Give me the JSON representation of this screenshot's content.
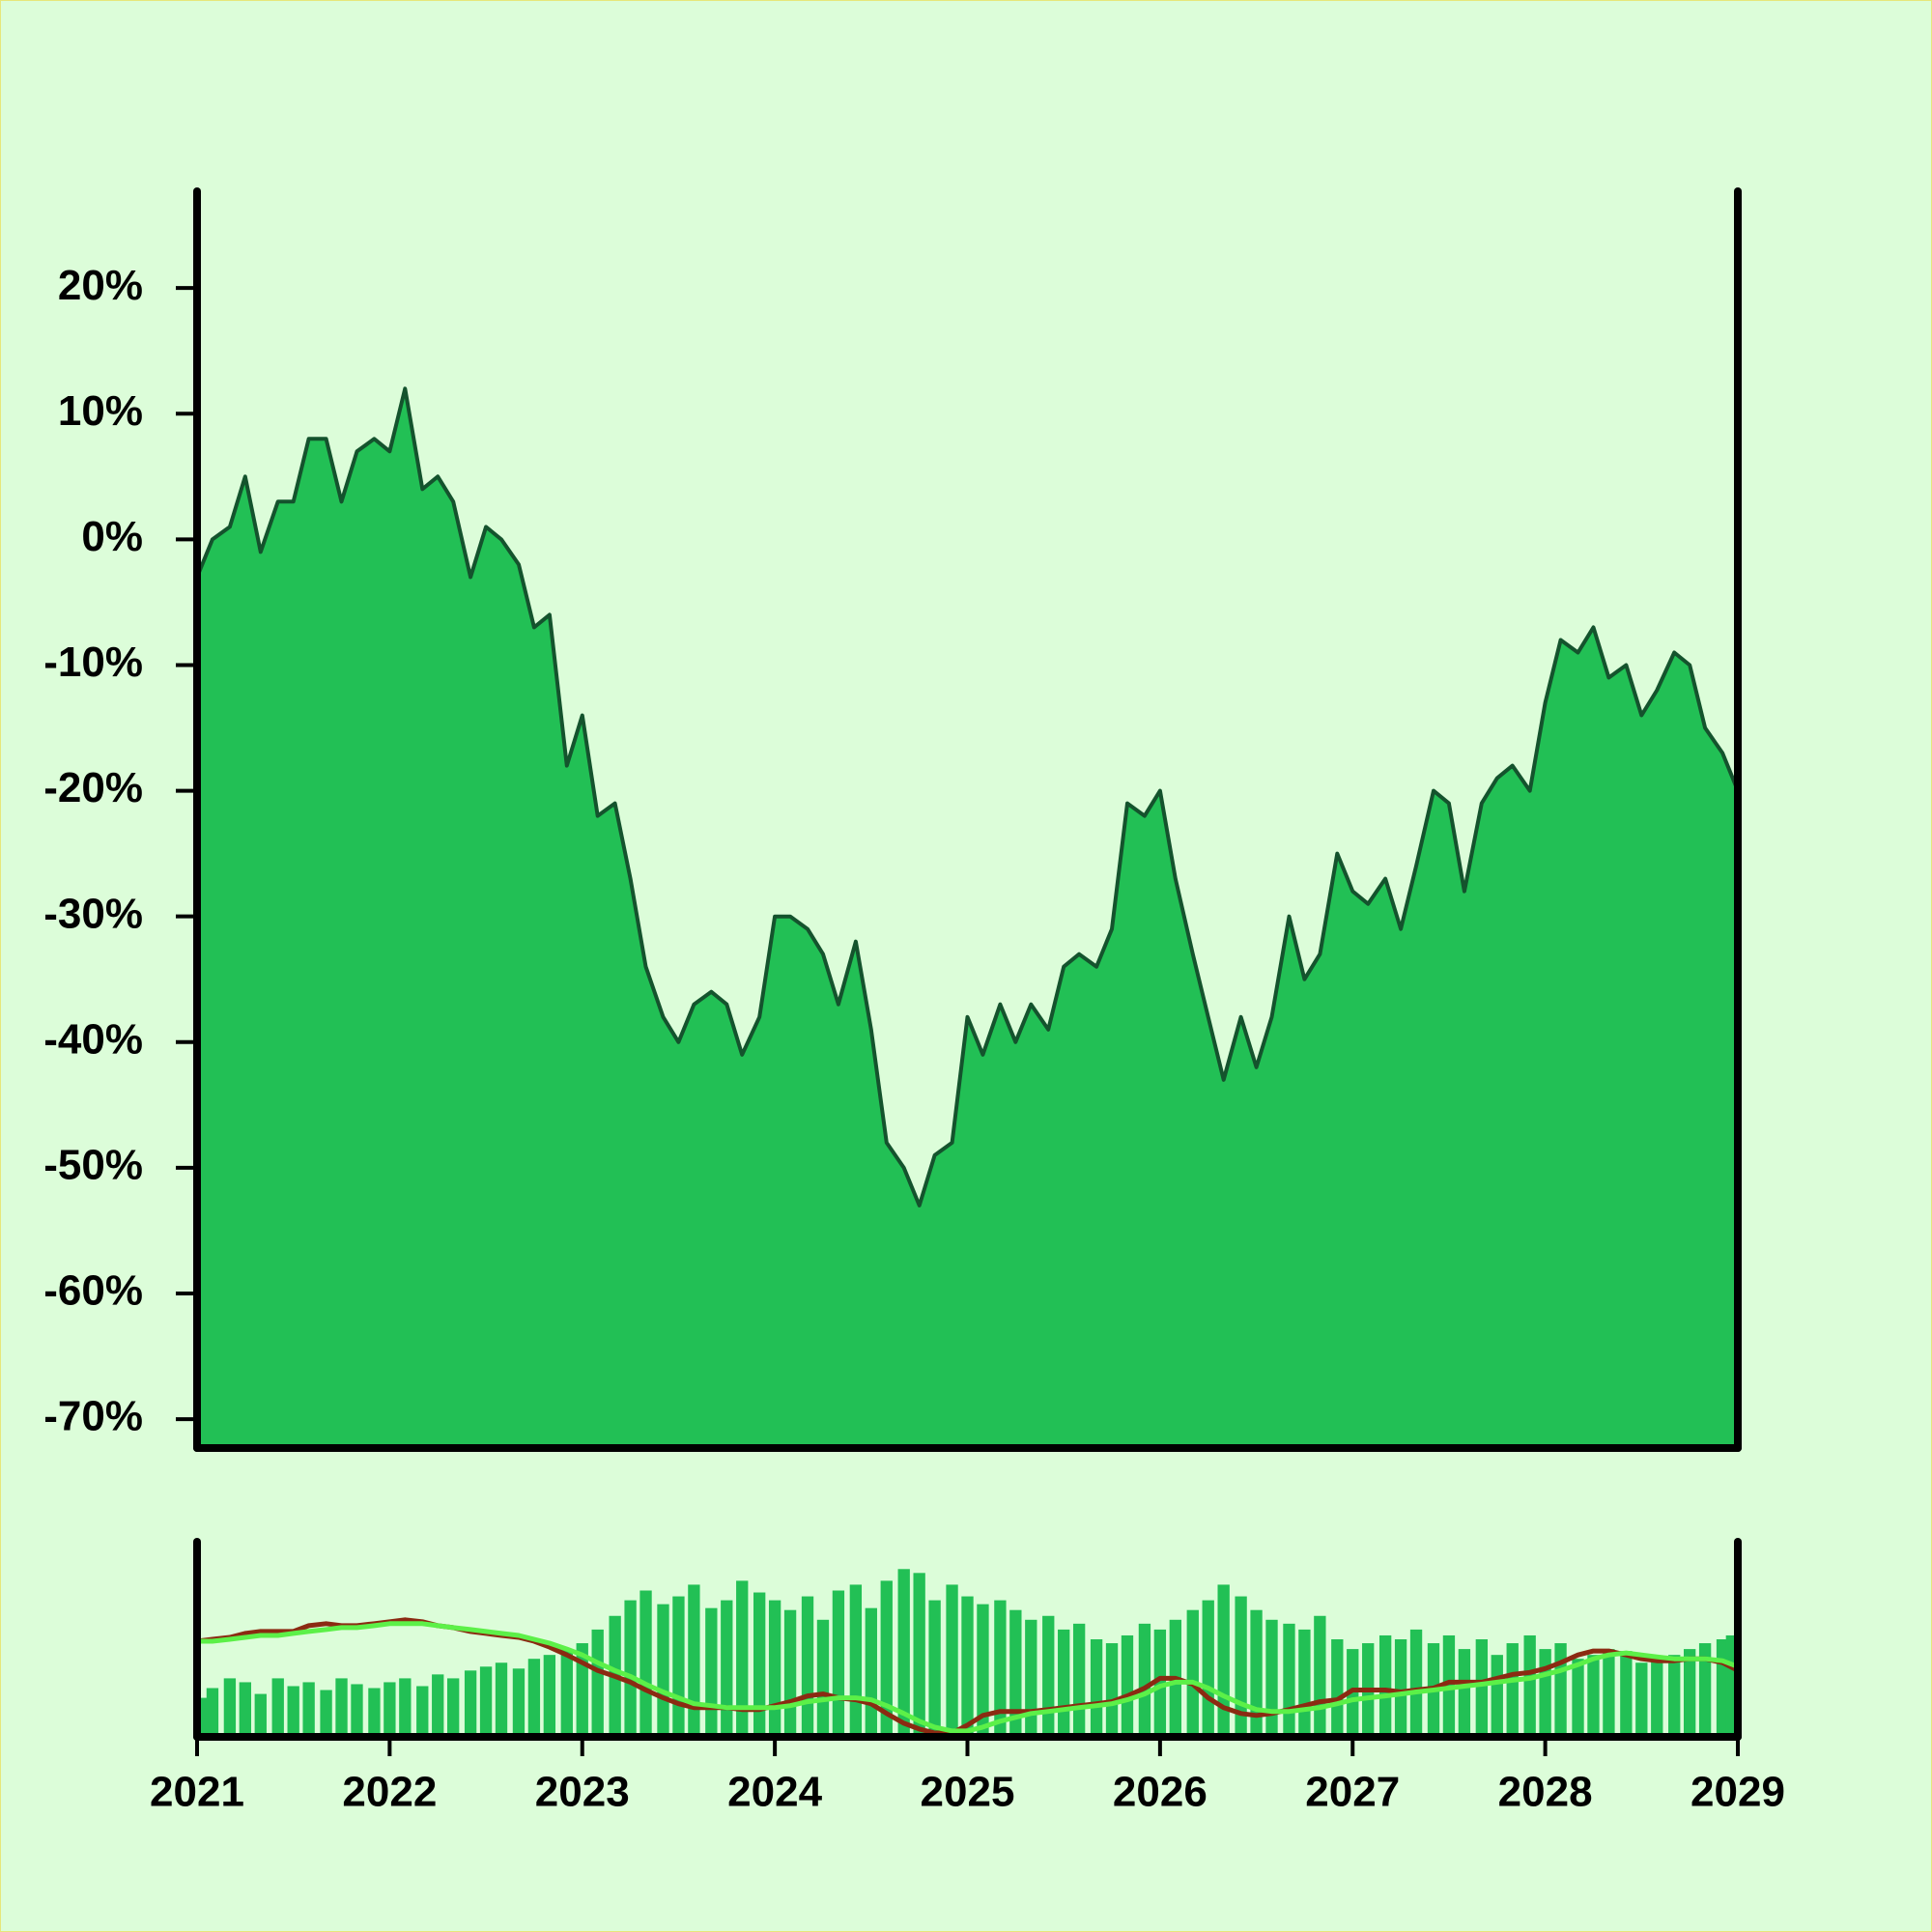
{
  "chart_data": [
    {
      "type": "area",
      "color": "#22c055",
      "line_color": "#14532d",
      "x": [
        2021,
        2021.08,
        2021.17,
        2021.25,
        2021.33,
        2021.42,
        2021.5,
        2021.58,
        2021.67,
        2021.75,
        2021.83,
        2021.92,
        2022,
        2022.08,
        2022.17,
        2022.25,
        2022.33,
        2022.42,
        2022.5,
        2022.58,
        2022.67,
        2022.75,
        2022.83,
        2022.92,
        2023,
        2023.08,
        2023.17,
        2023.25,
        2023.33,
        2023.42,
        2023.5,
        2023.58,
        2023.67,
        2023.75,
        2023.83,
        2023.92,
        2024,
        2024.08,
        2024.17,
        2024.25,
        2024.33,
        2024.42,
        2024.5,
        2024.58,
        2024.67,
        2024.75,
        2024.83,
        2024.92,
        2025,
        2025.08,
        2025.17,
        2025.25,
        2025.33,
        2025.42,
        2025.5,
        2025.58,
        2025.67,
        2025.75,
        2025.83,
        2025.92,
        2026,
        2026.08,
        2026.17,
        2026.25,
        2026.33,
        2026.42,
        2026.5,
        2026.58,
        2026.67,
        2026.75,
        2026.83,
        2026.92,
        2027,
        2027.08,
        2027.17,
        2027.25,
        2027.33,
        2027.42,
        2027.5,
        2027.58,
        2027.67,
        2027.75,
        2027.83,
        2027.92,
        2028,
        2028.08,
        2028.17,
        2028.25,
        2028.33,
        2028.42,
        2028.5,
        2028.58,
        2028.67,
        2028.75,
        2028.83,
        2028.92,
        2029
      ],
      "values": [
        -3,
        0,
        1,
        5,
        -1,
        3,
        3,
        8,
        8,
        3,
        7,
        8,
        7,
        12,
        4,
        5,
        3,
        -3,
        1,
        0,
        -2,
        -7,
        -6,
        -18,
        -14,
        -22,
        -21,
        -27,
        -34,
        -38,
        -40,
        -37,
        -36,
        -37,
        -41,
        -38,
        -30,
        -30,
        -31,
        -33,
        -37,
        -32,
        -39,
        -48,
        -50,
        -53,
        -49,
        -48,
        -38,
        -41,
        -37,
        -40,
        -37,
        -39,
        -34,
        -33,
        -34,
        -31,
        -21,
        -22,
        -20,
        -27,
        -33,
        -38,
        -43,
        -38,
        -42,
        -38,
        -30,
        -35,
        -33,
        -25,
        -28,
        -29,
        -27,
        -31,
        -26,
        -20,
        -21,
        -28,
        -21,
        -19,
        -18,
        -20,
        -13,
        -8,
        -9,
        -7,
        -11,
        -10,
        -14,
        -12,
        -9,
        -10,
        -15,
        -17,
        -20
      ],
      "xlim": [
        2021,
        2029
      ],
      "ylim": [
        -72.3,
        27.7
      ],
      "yticks": [
        {
          "value": 20,
          "label": "20%"
        },
        {
          "value": 10,
          "label": "10%"
        },
        {
          "value": 0,
          "label": "0%"
        },
        {
          "value": -10,
          "label": "-10%"
        },
        {
          "value": -20,
          "label": "-20%"
        },
        {
          "value": -30,
          "label": "-30%"
        },
        {
          "value": -40,
          "label": "-40%"
        },
        {
          "value": -50,
          "label": "-50%"
        },
        {
          "value": -60,
          "label": "-60%"
        },
        {
          "value": -70,
          "label": "-70%"
        }
      ]
    },
    {
      "type": "bar",
      "color": "#22c055",
      "x": [
        2021,
        2021.08,
        2021.17,
        2021.25,
        2021.33,
        2021.42,
        2021.5,
        2021.58,
        2021.67,
        2021.75,
        2021.83,
        2021.92,
        2022,
        2022.08,
        2022.17,
        2022.25,
        2022.33,
        2022.42,
        2022.5,
        2022.58,
        2022.67,
        2022.75,
        2022.83,
        2022.92,
        2023,
        2023.08,
        2023.17,
        2023.25,
        2023.33,
        2023.42,
        2023.5,
        2023.58,
        2023.67,
        2023.75,
        2023.83,
        2023.92,
        2024,
        2024.08,
        2024.17,
        2024.25,
        2024.33,
        2024.42,
        2024.5,
        2024.58,
        2024.67,
        2024.75,
        2024.83,
        2024.92,
        2025,
        2025.08,
        2025.17,
        2025.25,
        2025.33,
        2025.42,
        2025.5,
        2025.58,
        2025.67,
        2025.75,
        2025.83,
        2025.92,
        2026,
        2026.08,
        2026.17,
        2026.25,
        2026.33,
        2026.42,
        2026.5,
        2026.58,
        2026.67,
        2026.75,
        2026.83,
        2026.92,
        2027,
        2027.08,
        2027.17,
        2027.25,
        2027.33,
        2027.42,
        2027.5,
        2027.58,
        2027.67,
        2027.75,
        2027.83,
        2027.92,
        2028,
        2028.08,
        2028.17,
        2028.25,
        2028.33,
        2028.42,
        2028.5,
        2028.58,
        2028.67,
        2028.75,
        2028.83,
        2028.92,
        2029
      ],
      "values": [
        20,
        25,
        30,
        28,
        22,
        30,
        26,
        28,
        24,
        30,
        27,
        25,
        28,
        30,
        26,
        32,
        30,
        34,
        36,
        38,
        35,
        40,
        42,
        45,
        48,
        55,
        62,
        70,
        75,
        68,
        72,
        78,
        66,
        70,
        80,
        74,
        70,
        65,
        72,
        60,
        75,
        78,
        66,
        80,
        86,
        84,
        70,
        78,
        72,
        68,
        70,
        65,
        60,
        62,
        55,
        58,
        50,
        48,
        52,
        58,
        55,
        60,
        65,
        70,
        78,
        72,
        65,
        60,
        58,
        55,
        62,
        50,
        45,
        48,
        52,
        50,
        55,
        48,
        52,
        45,
        50,
        42,
        48,
        52,
        45,
        48,
        40,
        42,
        45,
        44,
        38,
        40,
        42,
        45,
        48,
        50,
        52
      ],
      "series": [
        {
          "color": "#8b2a12",
          "values": [
            49,
            50,
            51,
            53,
            54,
            54,
            54,
            57,
            58,
            57,
            57,
            58,
            59,
            60,
            59,
            57,
            56,
            54,
            53,
            52,
            51,
            49,
            46,
            42,
            38,
            34,
            31,
            28,
            24,
            20,
            17,
            15,
            15,
            15,
            14,
            14,
            16,
            18,
            21,
            22,
            20,
            19,
            17,
            12,
            7,
            4,
            2,
            2,
            6,
            11,
            13,
            13,
            13,
            14,
            15,
            16,
            17,
            18,
            21,
            25,
            30,
            30,
            27,
            20,
            15,
            12,
            11,
            12,
            14,
            16,
            18,
            19,
            24,
            24,
            24,
            23,
            24,
            25,
            28,
            28,
            28,
            30,
            32,
            33,
            35,
            38,
            42,
            44,
            44,
            42,
            40,
            39,
            39,
            40,
            40,
            38,
            34
          ]
        },
        {
          "color": "#5cf048",
          "values": [
            49,
            49,
            50,
            51,
            52,
            52,
            53,
            54,
            55,
            56,
            56,
            57,
            58,
            58,
            58,
            57,
            56,
            55,
            54,
            53,
            52,
            50,
            48,
            45,
            42,
            38,
            34,
            31,
            27,
            23,
            20,
            17,
            16,
            15,
            15,
            15,
            15,
            16,
            18,
            19,
            20,
            20,
            19,
            16,
            12,
            8,
            5,
            3,
            3,
            5,
            8,
            10,
            12,
            13,
            14,
            15,
            16,
            17,
            19,
            22,
            26,
            28,
            28,
            25,
            21,
            17,
            14,
            13,
            13,
            14,
            15,
            17,
            19,
            20,
            21,
            22,
            23,
            24,
            25,
            26,
            27,
            28,
            29,
            30,
            32,
            34,
            37,
            40,
            42,
            43,
            42,
            41,
            40,
            40,
            40,
            39,
            36
          ]
        }
      ],
      "xlim": [
        2021,
        2029
      ],
      "ylim": [
        0,
        100
      ],
      "xticks": [
        2021,
        2022,
        2023,
        2024,
        2025,
        2026,
        2027,
        2028,
        2029
      ]
    }
  ]
}
